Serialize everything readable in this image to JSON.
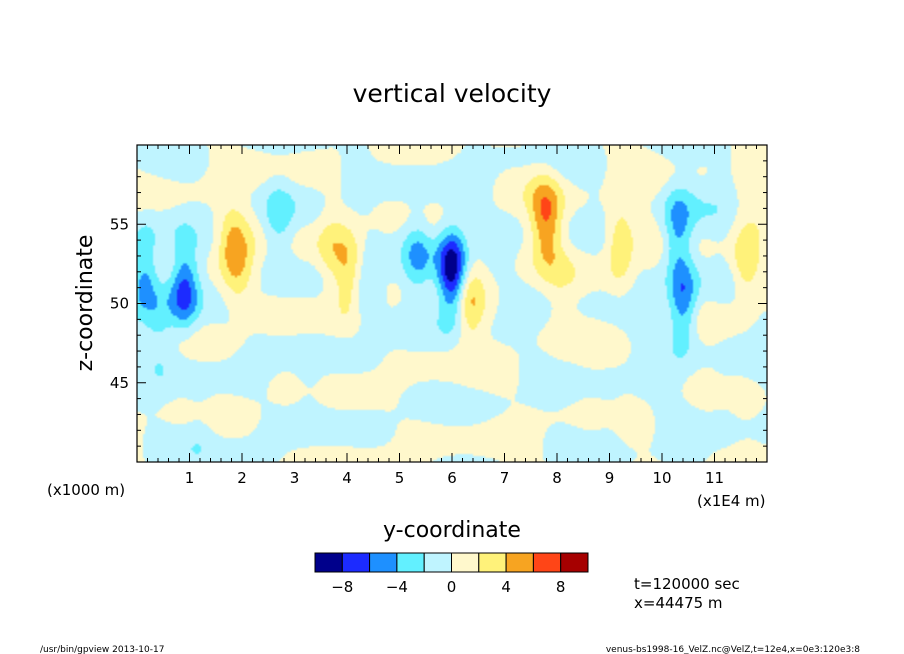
{
  "chart_data": {
    "type": "heatmap",
    "title": "vertical velocity",
    "xlabel": "y-coordinate",
    "ylabel": "z-coordinate",
    "x_unit_left": "(x1000 m)",
    "x_unit_right": "(x1E4 m)",
    "x_scale_factor": 10,
    "xlim": [
      0,
      120
    ],
    "ylim": [
      40,
      60
    ],
    "x_ticks": [
      10,
      20,
      30,
      40,
      50,
      60,
      70,
      80,
      90,
      100,
      110
    ],
    "x_tick_labels": [
      "1",
      "2",
      "3",
      "4",
      "5",
      "6",
      "7",
      "8",
      "9",
      "10",
      "11"
    ],
    "y_ticks": [
      45,
      50,
      55
    ],
    "y_tick_labels": [
      "45",
      "50",
      "55"
    ],
    "colorbar": {
      "levels": [
        -10,
        -8,
        -6,
        -4,
        -2,
        0,
        2,
        4,
        6,
        8,
        10
      ],
      "labels": [
        "−8",
        "−4",
        "0",
        "4",
        "8"
      ],
      "label_values": [
        -8,
        -4,
        0,
        4,
        8
      ],
      "colors": [
        "#00008b",
        "#1c2bff",
        "#1e90ff",
        "#62f0ff",
        "#bff4ff",
        "#fff8cc",
        "#fff27a",
        "#f7a421",
        "#ff4517",
        "#a60000"
      ]
    },
    "features": [
      {
        "y": 1.5,
        "z": 52,
        "w": -5
      },
      {
        "y": 9,
        "z": 51,
        "w": -7
      },
      {
        "y": 4.5,
        "z": 48.5,
        "w": -2.5
      },
      {
        "y": 20,
        "z": 52.5,
        "w": 2.5
      },
      {
        "y": 18,
        "z": 53.5,
        "w": 4
      },
      {
        "y": 27,
        "z": 55,
        "w": -3
      },
      {
        "y": 37,
        "z": 53.5,
        "w": 2.5
      },
      {
        "y": 40.5,
        "z": 52,
        "w": 4
      },
      {
        "y": 43.5,
        "z": 51,
        "w": -2.5
      },
      {
        "y": 53.5,
        "z": 53,
        "w": -4
      },
      {
        "y": 60,
        "z": 52,
        "w": -10
      },
      {
        "y": 63.5,
        "z": 50,
        "w": 4
      },
      {
        "y": 77,
        "z": 55.5,
        "w": 2.5
      },
      {
        "y": 78.5,
        "z": 55,
        "w": 4
      },
      {
        "y": 92,
        "z": 53.5,
        "w": 4
      },
      {
        "y": 103,
        "z": 54.5,
        "w": -5
      },
      {
        "y": 104,
        "z": 50,
        "w": -6
      },
      {
        "y": 116,
        "z": 52.5,
        "w": 4
      },
      {
        "y": 81,
        "z": 50,
        "w": 1.2
      },
      {
        "y": 33,
        "z": 45,
        "w": -1.2
      },
      {
        "y": 12,
        "z": 42.5,
        "w": -1.2
      },
      {
        "y": 90,
        "z": 42.5,
        "w": -1.2
      },
      {
        "y": 112,
        "z": 44,
        "w": -1.2
      },
      {
        "y": 112,
        "z": 58.5,
        "w": -1.2
      },
      {
        "y": 42,
        "z": 58.5,
        "w": -1.2
      }
    ]
  },
  "annotation_time": "t=120000 sec",
  "annotation_x": "x=44475 m",
  "footer_left": "/usr/bin/gpview   2013-10-17",
  "footer_right": "venus-bs1998-16_VelZ.nc@VelZ,t=12e4,x=0e3:120e3:8"
}
